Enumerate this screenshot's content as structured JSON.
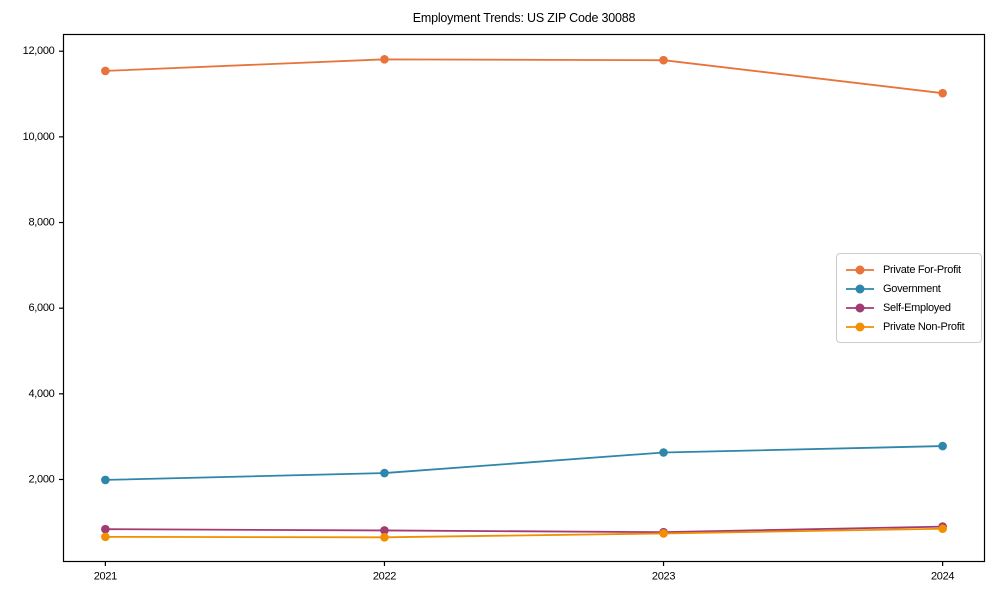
{
  "figure": {
    "background": "#ffffff",
    "axis_color": "#000000",
    "text_color": "#000000",
    "legend_border_color": "#cccccc"
  },
  "chart_data": {
    "type": "line",
    "title": "Employment Trends: US ZIP Code 30088",
    "x": [
      2021,
      2022,
      2023,
      2024
    ],
    "x_tick_labels": [
      "2021",
      "2022",
      "2023",
      "2024"
    ],
    "xlim": [
      2020.85,
      2024.15
    ],
    "ylim": [
      85,
      12390
    ],
    "y_ticks": [
      2000,
      4000,
      6000,
      8000,
      10000,
      12000
    ],
    "y_tick_labels": [
      "2,000",
      "4,000",
      "6,000",
      "8,000",
      "10,000",
      "12,000"
    ],
    "grid": false,
    "marker": "circle",
    "legend_position": "center-right",
    "series": [
      {
        "name": "Private For-Profit",
        "color": "#E8743B",
        "values": [
          11540,
          11810,
          11790,
          11020
        ]
      },
      {
        "name": "Government",
        "color": "#2E86AB",
        "values": [
          1990,
          2150,
          2630,
          2780
        ]
      },
      {
        "name": "Self-Employed",
        "color": "#A23B72",
        "values": [
          840,
          810,
          770,
          900
        ]
      },
      {
        "name": "Private Non-Profit",
        "color": "#F18F01",
        "values": [
          660,
          650,
          740,
          850
        ]
      }
    ]
  }
}
